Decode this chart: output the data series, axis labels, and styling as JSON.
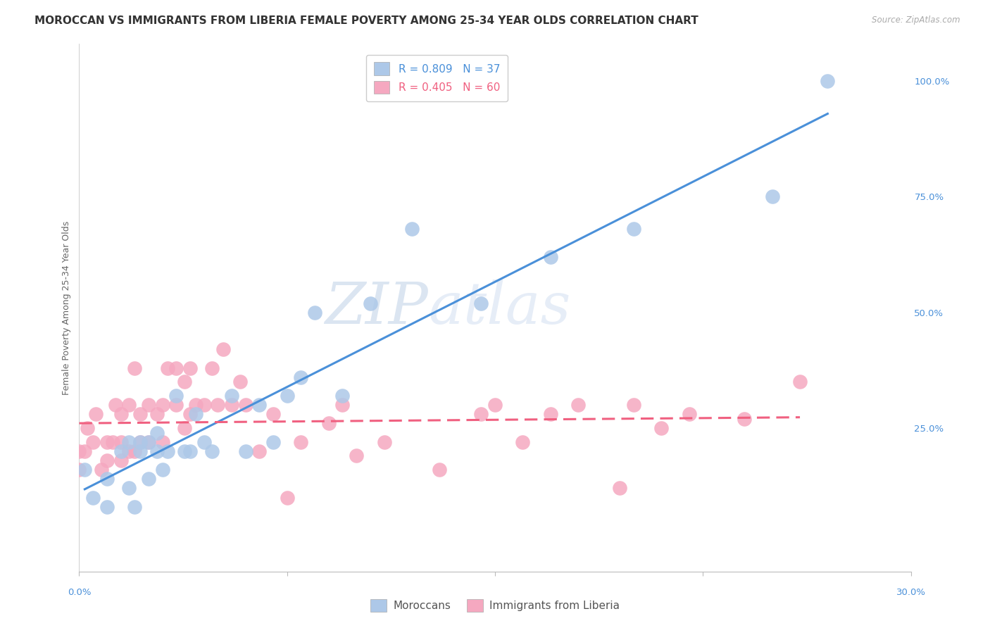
{
  "title": "MOROCCAN VS IMMIGRANTS FROM LIBERIA FEMALE POVERTY AMONG 25-34 YEAR OLDS CORRELATION CHART",
  "source": "Source: ZipAtlas.com",
  "ylabel": "Female Poverty Among 25-34 Year Olds",
  "xlim": [
    0.0,
    0.3
  ],
  "ylim": [
    -0.06,
    1.08
  ],
  "right_yticks": [
    0.0,
    0.25,
    0.5,
    0.75,
    1.0
  ],
  "right_yticklabels": [
    "",
    "25.0%",
    "50.0%",
    "75.0%",
    "100.0%"
  ],
  "moroccan_R": 0.809,
  "moroccan_N": 37,
  "liberia_R": 0.405,
  "liberia_N": 60,
  "moroccan_color": "#adc8e8",
  "liberia_color": "#f5a8c0",
  "moroccan_line_color": "#4a90d9",
  "liberia_line_color": "#f06080",
  "watermark_zip": "ZIP",
  "watermark_atlas": "atlas",
  "grid_color": "#d0d8e8",
  "background_color": "#ffffff",
  "title_fontsize": 11,
  "label_fontsize": 9,
  "tick_fontsize": 9.5,
  "legend_fontsize": 11,
  "moroccan_scatter_x": [
    0.002,
    0.005,
    0.01,
    0.01,
    0.015,
    0.018,
    0.018,
    0.02,
    0.022,
    0.022,
    0.025,
    0.025,
    0.028,
    0.028,
    0.03,
    0.032,
    0.035,
    0.038,
    0.04,
    0.042,
    0.045,
    0.048,
    0.055,
    0.06,
    0.065,
    0.07,
    0.075,
    0.08,
    0.085,
    0.095,
    0.105,
    0.12,
    0.145,
    0.17,
    0.2,
    0.25,
    0.27
  ],
  "moroccan_scatter_y": [
    0.16,
    0.1,
    0.14,
    0.08,
    0.2,
    0.12,
    0.22,
    0.08,
    0.2,
    0.22,
    0.14,
    0.22,
    0.2,
    0.24,
    0.16,
    0.2,
    0.32,
    0.2,
    0.2,
    0.28,
    0.22,
    0.2,
    0.32,
    0.2,
    0.3,
    0.22,
    0.32,
    0.36,
    0.5,
    0.32,
    0.52,
    0.68,
    0.52,
    0.62,
    0.68,
    0.75,
    1.0
  ],
  "liberia_scatter_x": [
    0.0,
    0.0,
    0.002,
    0.003,
    0.005,
    0.006,
    0.008,
    0.01,
    0.01,
    0.012,
    0.013,
    0.015,
    0.015,
    0.015,
    0.018,
    0.018,
    0.02,
    0.02,
    0.022,
    0.022,
    0.025,
    0.025,
    0.028,
    0.03,
    0.03,
    0.032,
    0.035,
    0.035,
    0.038,
    0.038,
    0.04,
    0.04,
    0.042,
    0.045,
    0.048,
    0.05,
    0.052,
    0.055,
    0.058,
    0.06,
    0.065,
    0.07,
    0.075,
    0.08,
    0.09,
    0.095,
    0.1,
    0.11,
    0.13,
    0.145,
    0.15,
    0.16,
    0.17,
    0.18,
    0.195,
    0.2,
    0.21,
    0.22,
    0.24,
    0.26
  ],
  "liberia_scatter_y": [
    0.16,
    0.2,
    0.2,
    0.25,
    0.22,
    0.28,
    0.16,
    0.18,
    0.22,
    0.22,
    0.3,
    0.18,
    0.22,
    0.28,
    0.2,
    0.3,
    0.2,
    0.38,
    0.22,
    0.28,
    0.22,
    0.3,
    0.28,
    0.22,
    0.3,
    0.38,
    0.3,
    0.38,
    0.25,
    0.35,
    0.28,
    0.38,
    0.3,
    0.3,
    0.38,
    0.3,
    0.42,
    0.3,
    0.35,
    0.3,
    0.2,
    0.28,
    0.1,
    0.22,
    0.26,
    0.3,
    0.19,
    0.22,
    0.16,
    0.28,
    0.3,
    0.22,
    0.28,
    0.3,
    0.12,
    0.3,
    0.25,
    0.28,
    0.27,
    0.35
  ]
}
